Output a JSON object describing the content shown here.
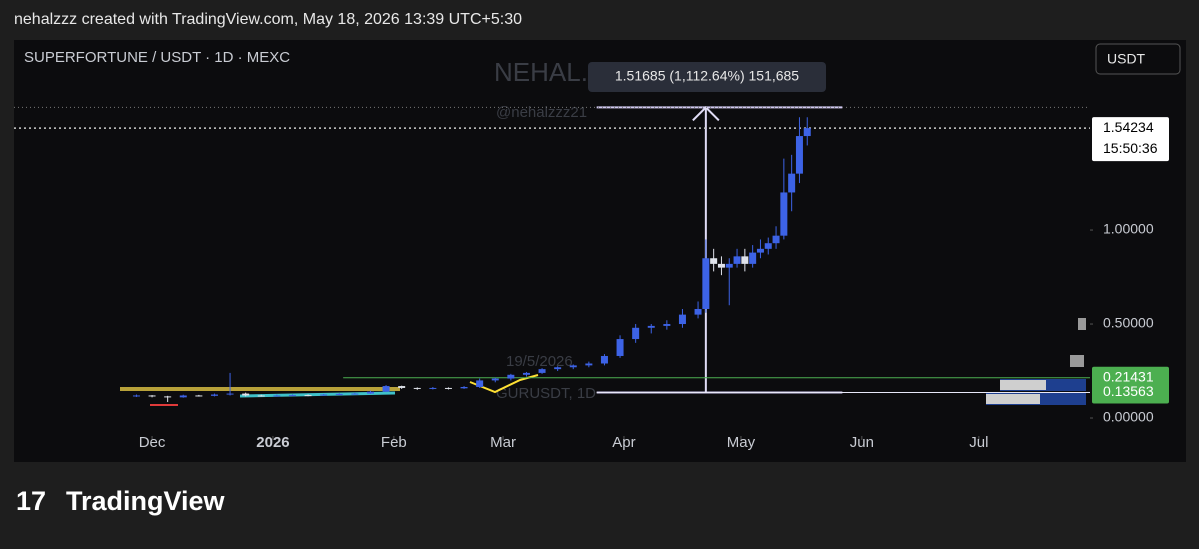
{
  "header": {
    "text": "nehalzzz created with TradingView.com, May 18, 2026 13:39 UTC+5:30"
  },
  "chart_data": {
    "type": "candlestick",
    "title": "SUPERFORTUNE / USDT · 1D · MEXC",
    "currency": "USDT",
    "watermarks": [
      "NEHAL.EI",
      "@nehalzzz21",
      "19/5/2026",
      "GURUSDT, 1D"
    ],
    "x": [
      -4,
      0,
      4,
      8,
      12,
      16,
      20,
      24,
      28,
      32,
      36,
      40,
      44,
      48,
      52,
      56,
      60,
      64,
      68,
      72,
      76,
      80,
      84,
      88,
      92,
      96,
      100,
      104,
      108,
      112,
      116,
      120,
      124,
      128,
      132,
      136,
      140,
      142,
      144,
      146,
      148,
      150,
      152,
      154,
      156,
      158,
      160,
      162,
      164,
      166,
      168
    ],
    "open": [
      0.118,
      0.12,
      0.115,
      0.11,
      0.12,
      0.118,
      0.125,
      0.13,
      0.12,
      0.118,
      0.12,
      0.122,
      0.12,
      0.125,
      0.128,
      0.13,
      0.14,
      0.17,
      0.16,
      0.155,
      0.16,
      0.158,
      0.165,
      0.2,
      0.21,
      0.23,
      0.24,
      0.26,
      0.27,
      0.28,
      0.29,
      0.33,
      0.42,
      0.48,
      0.49,
      0.5,
      0.55,
      0.58,
      0.85,
      0.82,
      0.8,
      0.82,
      0.86,
      0.82,
      0.88,
      0.9,
      0.93,
      0.97,
      1.2,
      1.3,
      1.5
    ],
    "high": [
      0.125,
      0.122,
      0.118,
      0.124,
      0.123,
      0.13,
      0.24,
      0.135,
      0.124,
      0.125,
      0.126,
      0.125,
      0.128,
      0.132,
      0.134,
      0.145,
      0.175,
      0.172,
      0.163,
      0.165,
      0.163,
      0.17,
      0.21,
      0.215,
      0.235,
      0.245,
      0.265,
      0.275,
      0.285,
      0.3,
      0.34,
      0.44,
      0.5,
      0.5,
      0.52,
      0.58,
      0.62,
      0.95,
      0.9,
      0.86,
      0.85,
      0.9,
      0.9,
      0.92,
      0.95,
      0.96,
      1.02,
      1.38,
      1.4,
      1.6,
      1.6
    ],
    "low": [
      0.112,
      0.11,
      0.085,
      0.108,
      0.114,
      0.115,
      0.12,
      0.115,
      0.114,
      0.115,
      0.117,
      0.116,
      0.118,
      0.122,
      0.125,
      0.128,
      0.138,
      0.155,
      0.15,
      0.152,
      0.152,
      0.155,
      0.16,
      0.19,
      0.2,
      0.22,
      0.235,
      0.25,
      0.26,
      0.27,
      0.28,
      0.32,
      0.4,
      0.45,
      0.47,
      0.48,
      0.53,
      0.56,
      0.78,
      0.76,
      0.6,
      0.8,
      0.78,
      0.8,
      0.85,
      0.87,
      0.9,
      0.95,
      1.1,
      1.25,
      1.45
    ],
    "close": [
      0.12,
      0.115,
      0.11,
      0.12,
      0.118,
      0.125,
      0.13,
      0.12,
      0.118,
      0.12,
      0.122,
      0.12,
      0.125,
      0.128,
      0.13,
      0.14,
      0.17,
      0.16,
      0.155,
      0.16,
      0.158,
      0.165,
      0.2,
      0.21,
      0.23,
      0.24,
      0.26,
      0.27,
      0.28,
      0.29,
      0.33,
      0.42,
      0.48,
      0.49,
      0.5,
      0.55,
      0.58,
      0.85,
      0.82,
      0.8,
      0.82,
      0.86,
      0.82,
      0.88,
      0.9,
      0.93,
      0.97,
      1.2,
      1.3,
      1.5,
      1.54234
    ],
    "up_color": "#3d63e6",
    "down_color": "#dfe2ea",
    "xlim": [
      -35.4,
      240.5
    ],
    "xticks": [
      {
        "value": 0,
        "label": "Dec"
      },
      {
        "value": 31,
        "label": "2026"
      },
      {
        "value": 62,
        "label": "Feb"
      },
      {
        "value": 90,
        "label": "Mar"
      },
      {
        "value": 121,
        "label": "Apr"
      },
      {
        "value": 151,
        "label": "May"
      },
      {
        "value": 182,
        "label": "Jun"
      },
      {
        "value": 212,
        "label": "Jul"
      }
    ],
    "ylim": [
      -0.234,
      2.011
    ],
    "yticks": [
      {
        "value": 0,
        "label": "0.00000"
      },
      {
        "value": 0.5,
        "label": "0.50000"
      },
      {
        "value": 1,
        "label": "1.00000"
      }
    ],
    "price_lines": [
      {
        "value": 1.54234,
        "color": "#ffffff"
      },
      {
        "value": 0.21431,
        "color": "#4caf50"
      },
      {
        "value": 0.13563,
        "color": "#4caf50"
      }
    ],
    "countdown": "15:50:36",
    "measure": {
      "start": 114,
      "end": 177,
      "arrow_at": 142,
      "low": 0.13563,
      "high": 1.65248,
      "label": "1.51685 (1,112.64%) 151,685"
    }
  },
  "footer": {
    "logo": "TradingView"
  }
}
